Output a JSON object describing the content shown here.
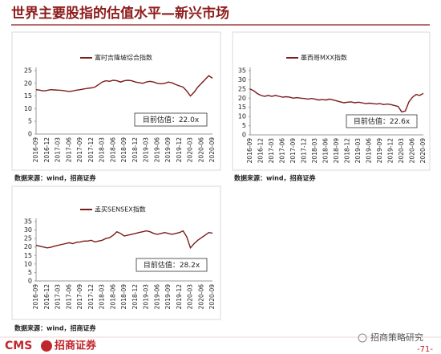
{
  "title": "世界主要股指的估值水平—新兴市场",
  "chart_data": [
    {
      "type": "line",
      "series": [
        {
          "name": "富时吉隆坡综合指数",
          "color": "#7b1b1b",
          "values": [
            17.5,
            17.3,
            17.0,
            17.2,
            17.5,
            17.4,
            17.3,
            17.2,
            17.0,
            16.8,
            17.0,
            17.3,
            17.5,
            17.8,
            18.0,
            18.2,
            18.5,
            19.5,
            20.5,
            21.0,
            20.8,
            21.2,
            21.0,
            20.5,
            21.0,
            21.2,
            21.0,
            20.5,
            20.3,
            20.0,
            20.5,
            20.8,
            20.5,
            20.0,
            19.8,
            20.0,
            20.5,
            20.2,
            19.5,
            19.0,
            18.5,
            17.0,
            15.0,
            16.5,
            18.5,
            20.0,
            21.5,
            23.0,
            22.0
          ]
        }
      ],
      "categories": [
        "2016-09",
        null,
        null,
        "2016-12",
        null,
        null,
        "2017-03",
        null,
        null,
        "2017-06",
        null,
        null,
        "2017-09",
        null,
        null,
        "2017-12",
        null,
        null,
        "2018-03",
        null,
        null,
        "2018-06",
        null,
        null,
        "2018-09",
        null,
        null,
        "2018-12",
        null,
        null,
        "2019-03",
        null,
        null,
        "2019-06",
        null,
        null,
        "2019-09",
        null,
        null,
        "2019-12",
        null,
        null,
        "2020-03",
        null,
        null,
        "2020-06",
        null,
        null,
        "2020-09"
      ],
      "ylim": [
        0,
        25
      ],
      "yticks": [
        0,
        5,
        10,
        15,
        20,
        25
      ],
      "annotation": "目前估值：22.0x"
    },
    {
      "type": "line",
      "series": [
        {
          "name": "墨西哥MXX指数",
          "color": "#7b1b1b",
          "values": [
            25.0,
            24.0,
            22.5,
            21.5,
            21.0,
            21.5,
            21.0,
            21.5,
            21.0,
            20.5,
            20.8,
            20.5,
            20.0,
            20.3,
            20.0,
            19.8,
            19.5,
            19.8,
            19.5,
            19.0,
            19.3,
            19.0,
            19.5,
            19.0,
            18.5,
            18.0,
            17.5,
            17.8,
            18.0,
            17.5,
            17.8,
            17.5,
            17.0,
            17.3,
            17.0,
            16.8,
            17.0,
            16.5,
            16.8,
            16.5,
            16.0,
            15.5,
            12.5,
            13.0,
            18.0,
            20.5,
            22.0,
            21.5,
            22.6
          ]
        }
      ],
      "categories": [
        "2016-09",
        null,
        null,
        "2016-12",
        null,
        null,
        "2017-03",
        null,
        null,
        "2017-06",
        null,
        null,
        "2017-09",
        null,
        null,
        "2017-12",
        null,
        null,
        "2018-03",
        null,
        null,
        "2018-06",
        null,
        null,
        "2018-09",
        null,
        null,
        "2018-12",
        null,
        null,
        "2019-03",
        null,
        null,
        "2019-06",
        null,
        null,
        "2019-09",
        null,
        null,
        "2019-12",
        null,
        null,
        "2020-03",
        null,
        null,
        "2020-06",
        null,
        null,
        "2020-09"
      ],
      "ylim": [
        0,
        35
      ],
      "yticks": [
        0,
        5,
        10,
        15,
        20,
        25,
        30,
        35
      ],
      "annotation": "目前估值：22.6x"
    },
    {
      "type": "line",
      "series": [
        {
          "name": "孟买SENSEX指数",
          "color": "#7b1b1b",
          "values": [
            21.0,
            20.5,
            20.0,
            19.5,
            19.8,
            20.5,
            21.0,
            21.5,
            22.0,
            22.5,
            22.0,
            22.8,
            23.0,
            23.5,
            23.5,
            24.0,
            23.0,
            23.5,
            24.0,
            25.0,
            25.5,
            27.0,
            29.0,
            28.0,
            26.5,
            27.0,
            27.5,
            28.0,
            28.5,
            29.0,
            29.5,
            29.0,
            28.0,
            27.5,
            28.0,
            28.5,
            28.0,
            27.5,
            28.0,
            28.5,
            29.5,
            26.0,
            19.5,
            22.0,
            24.0,
            25.5,
            27.0,
            28.5,
            28.2
          ]
        }
      ],
      "categories": [
        "2016-09",
        null,
        null,
        "2016-12",
        null,
        null,
        "2017-03",
        null,
        null,
        "2017-06",
        null,
        null,
        "2017-09",
        null,
        null,
        "2017-12",
        null,
        null,
        "2018-03",
        null,
        null,
        "2018-06",
        null,
        null,
        "2018-09",
        null,
        null,
        "2018-12",
        null,
        null,
        "2019-03",
        null,
        null,
        "2019-06",
        null,
        null,
        "2019-09",
        null,
        null,
        "2019-12",
        null,
        null,
        "2020-03",
        null,
        null,
        "2020-06",
        null,
        null,
        "2020-09"
      ],
      "ylim": [
        0,
        35
      ],
      "yticks": [
        0,
        5,
        10,
        15,
        20,
        25,
        30,
        35
      ],
      "annotation": "目前估值：28.2x"
    }
  ],
  "sources": [
    "数据来源：wind，招商证券",
    "数据来源：wind，招商证券",
    "数据来源：wind，招商证券"
  ],
  "footer": {
    "logo": "CMS",
    "company": "招商证券",
    "brand": "招商策略研究",
    "page": "-71-"
  }
}
